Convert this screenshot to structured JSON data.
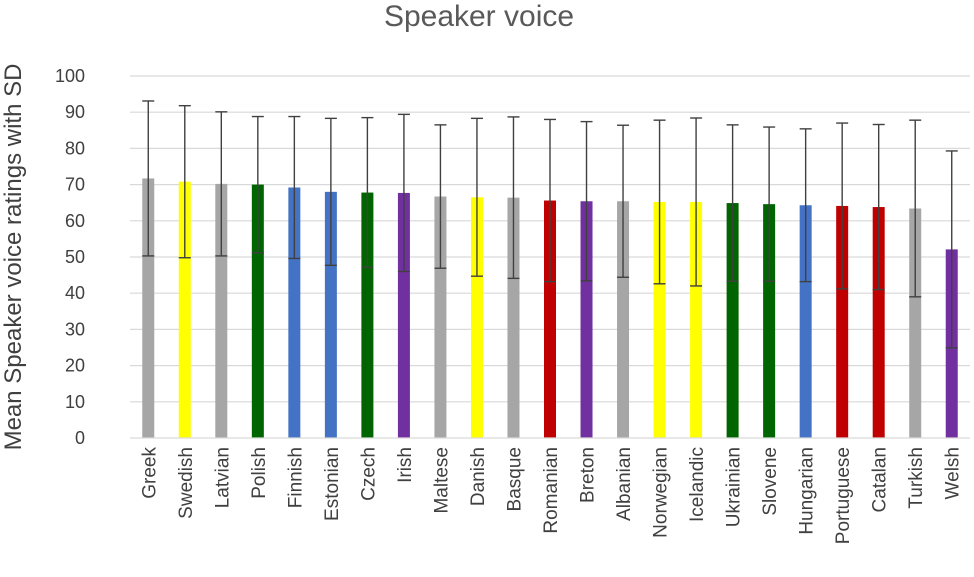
{
  "chart_data": {
    "type": "bar",
    "title": "Speaker voice",
    "xlabel": "",
    "ylabel": "Mean Speaker voice ratings with SD",
    "ylim": [
      0,
      100
    ],
    "yticks": [
      0,
      10,
      20,
      30,
      40,
      50,
      60,
      70,
      80,
      90,
      100
    ],
    "grid": true,
    "legend": "none",
    "categories": [
      "Greek",
      "Swedish",
      "Latvian",
      "Polish",
      "Finnish",
      "Estonian",
      "Czech",
      "Irish",
      "Maltese",
      "Danish",
      "Basque",
      "Romanian",
      "Breton",
      "Albanian",
      "Norwegian",
      "Icelandic",
      "Ukrainian",
      "Slovene",
      "Hungarian",
      "Portuguese",
      "Catalan",
      "Turkish",
      "Welsh"
    ],
    "values": [
      71.7,
      70.8,
      70.2,
      70.0,
      69.2,
      68.0,
      67.8,
      67.7,
      66.7,
      66.5,
      66.4,
      65.6,
      65.4,
      65.4,
      65.2,
      65.2,
      64.9,
      64.6,
      64.3,
      64.1,
      63.8,
      63.4,
      52.1
    ],
    "sd": [
      21.4,
      21.0,
      19.9,
      18.8,
      19.6,
      20.3,
      20.7,
      21.7,
      19.8,
      21.8,
      22.3,
      22.4,
      22.0,
      21.0,
      22.6,
      23.2,
      21.6,
      21.3,
      21.1,
      22.9,
      22.8,
      24.4,
      27.2
    ],
    "bar_colors": [
      "#a6a6a6",
      "#ffff00",
      "#a6a6a6",
      "#006400",
      "#4472c4",
      "#4472c4",
      "#006400",
      "#7030a0",
      "#a6a6a6",
      "#ffff00",
      "#a6a6a6",
      "#c00000",
      "#7030a0",
      "#a6a6a6",
      "#ffff00",
      "#ffff00",
      "#006400",
      "#006400",
      "#4472c4",
      "#c00000",
      "#c00000",
      "#a6a6a6",
      "#7030a0"
    ],
    "colors": {
      "grid": "#d9d9d9",
      "error_bar": "#404040",
      "text": "#404040",
      "title": "#595959"
    }
  }
}
